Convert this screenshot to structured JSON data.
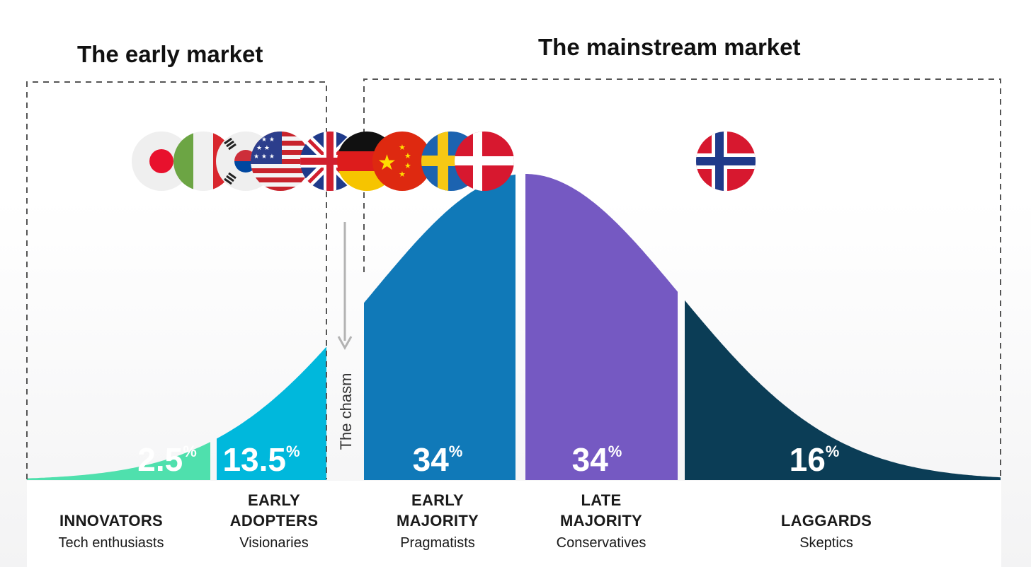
{
  "titles": {
    "early_market": "The early market",
    "mainstream_market": "The mainstream market"
  },
  "chasm_label": "The chasm",
  "chart_data": {
    "type": "area",
    "title": "",
    "distribution": "normal",
    "segments": [
      {
        "name": "INNOVATORS",
        "description": "Tech enthusiasts",
        "value": 2.5,
        "unit": "%",
        "color": "#4fe0ad"
      },
      {
        "name": "EARLY\nADOPTERS",
        "description": "Visionaries",
        "value": 13.5,
        "unit": "%",
        "color": "#00b8dc"
      },
      {
        "name": "EARLY\nMAJORITY",
        "description": "Pragmatists",
        "value": 34,
        "unit": "%",
        "color": "#1079b8"
      },
      {
        "name": "LATE\nMAJORITY",
        "description": "Conservatives",
        "value": 34,
        "unit": "%",
        "color": "#7559c2"
      },
      {
        "name": "LAGGARDS",
        "description": "Skeptics",
        "value": 16,
        "unit": "%",
        "color": "#0b3d56"
      }
    ]
  },
  "flags": [
    {
      "name": "japan-flag-icon"
    },
    {
      "name": "italy-flag-icon"
    },
    {
      "name": "south-korea-flag-icon"
    },
    {
      "name": "usa-flag-icon"
    },
    {
      "name": "uk-flag-icon"
    },
    {
      "name": "germany-flag-icon"
    },
    {
      "name": "china-flag-icon"
    },
    {
      "name": "sweden-flag-icon"
    },
    {
      "name": "denmark-flag-icon"
    },
    {
      "name": "norway-flag-icon"
    }
  ],
  "colors": {
    "chasm_arrow": "#b3b3b3",
    "dashed_border": "#555555",
    "text": "#1a1a1a"
  }
}
